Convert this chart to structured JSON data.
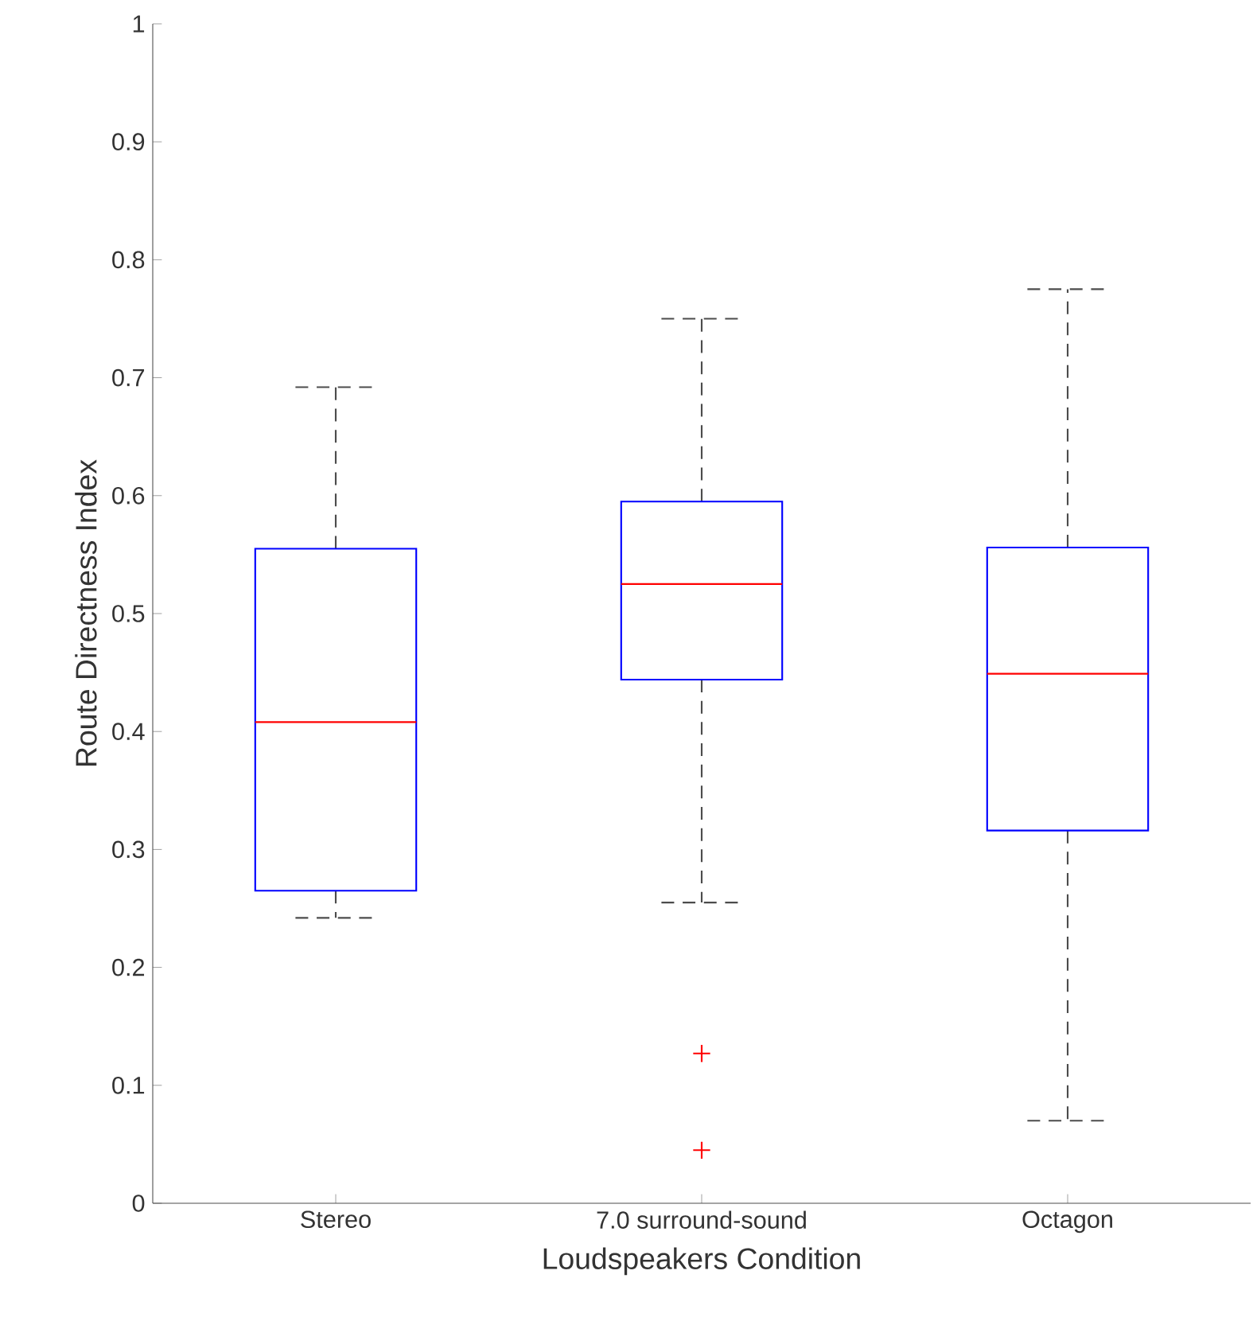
{
  "chart_data": {
    "type": "box",
    "xlabel": "Loudspeakers Condition",
    "ylabel": "Route Directness Index",
    "categories": [
      "Stereo",
      "7.0 surround-sound",
      "Octagon"
    ],
    "series": [
      {
        "color": "#0000ff",
        "boxes": [
          {
            "low": 0.242,
            "q1": 0.265,
            "median": 0.408,
            "q3": 0.555,
            "high": 0.692
          },
          {
            "low": 0.255,
            "q1": 0.444,
            "median": 0.525,
            "q3": 0.595,
            "high": 0.75,
            "outliers": [
              0.127,
              0.045
            ]
          },
          {
            "low": 0.07,
            "q1": 0.316,
            "median": 0.449,
            "q3": 0.556,
            "high": 0.775
          }
        ]
      }
    ],
    "ylim": [
      0,
      1
    ],
    "yticks": [
      0,
      0.1,
      0.2,
      0.3,
      0.4,
      0.5,
      0.6,
      0.7,
      0.8,
      0.9,
      1
    ]
  }
}
